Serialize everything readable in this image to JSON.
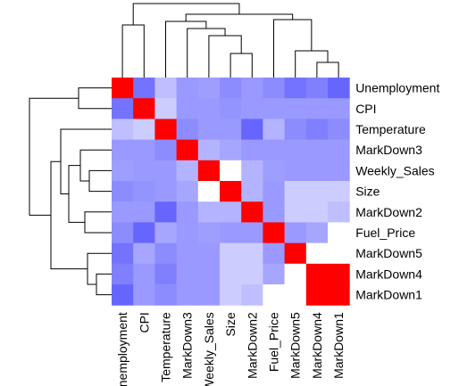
{
  "chart_data": {
    "type": "heatmap",
    "row_labels": [
      "Unemployment",
      "CPI",
      "Temperature",
      "MarkDown3",
      "Weekly_Sales",
      "Size",
      "MarkDown2",
      "Fuel_Price",
      "MarkDown5",
      "MarkDown4",
      "MarkDown1"
    ],
    "col_labels": [
      "Unemployment",
      "CPI",
      "Temperature",
      "MarkDown3",
      "Weekly_Sales",
      "Size",
      "MarkDown2",
      "Fuel_Price",
      "MarkDown5",
      "MarkDown4",
      "MarkDown1"
    ],
    "value_range": [
      -1,
      1
    ],
    "colors": {
      "low": "#0000ff",
      "mid": "#ffffff",
      "high": "#ff0000"
    },
    "values": [
      [
        1.0,
        -0.55,
        -0.25,
        -0.4,
        -0.38,
        -0.45,
        -0.4,
        -0.45,
        -0.55,
        -0.5,
        -0.6
      ],
      [
        -0.55,
        1.0,
        -0.2,
        -0.4,
        -0.4,
        -0.42,
        -0.4,
        -0.4,
        -0.4,
        -0.4,
        -0.4
      ],
      [
        -0.25,
        -0.2,
        1.0,
        -0.45,
        -0.4,
        -0.4,
        -0.6,
        -0.3,
        -0.45,
        -0.5,
        -0.45
      ],
      [
        -0.4,
        -0.4,
        -0.45,
        1.0,
        -0.3,
        -0.35,
        -0.4,
        -0.4,
        -0.4,
        -0.4,
        -0.4
      ],
      [
        -0.38,
        -0.4,
        -0.4,
        -0.3,
        1.0,
        0.0,
        -0.3,
        -0.38,
        -0.4,
        -0.4,
        -0.4
      ],
      [
        -0.45,
        -0.42,
        -0.4,
        -0.35,
        0.0,
        1.0,
        -0.3,
        -0.4,
        -0.2,
        -0.2,
        -0.2
      ],
      [
        -0.4,
        -0.4,
        -0.6,
        -0.4,
        -0.3,
        -0.3,
        1.0,
        -0.4,
        -0.2,
        -0.2,
        -0.25
      ],
      [
        -0.45,
        -0.6,
        -0.35,
        -0.4,
        -0.38,
        -0.4,
        -0.4,
        1.0,
        -0.4,
        -0.35,
        0.0
      ],
      [
        -0.55,
        -0.35,
        -0.45,
        -0.4,
        -0.4,
        -0.2,
        -0.2,
        -0.4,
        1.0,
        0.0,
        0.0
      ],
      [
        -0.5,
        -0.4,
        -0.5,
        -0.4,
        -0.4,
        -0.2,
        -0.2,
        -0.35,
        0.0,
        1.0,
        1.0
      ],
      [
        -0.6,
        -0.4,
        -0.45,
        -0.4,
        -0.4,
        -0.2,
        -0.25,
        0.0,
        0.0,
        1.0,
        1.0
      ]
    ],
    "col_dendrogram": "hierarchical clustering (top)",
    "row_dendrogram": "hierarchical clustering (left)"
  }
}
